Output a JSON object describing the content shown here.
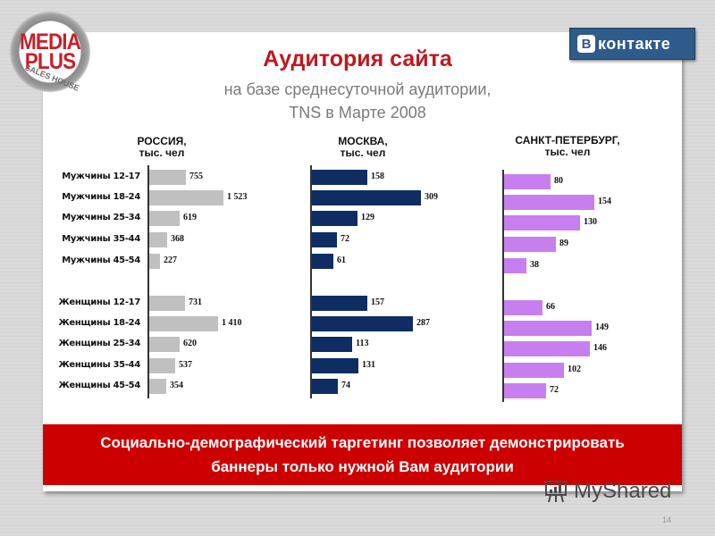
{
  "logo": {
    "line1": "MEDIA",
    "line2": "PLUS",
    "line3": "SALES HOUSE"
  },
  "brand_badge": {
    "letter": "В",
    "text": "контакте"
  },
  "title": "Аудитория сайта",
  "subtitle_line1": "на базе среднесуточной аудитории,",
  "subtitle_line2": "TNS в Марте 2008",
  "banner": {
    "line1": "Социально-демографический таргетинг позволяет демонстрировать",
    "line2": "баннеры только нужной Вам аудитории"
  },
  "watermark": "MyShared",
  "page_number": "14",
  "colors": {
    "russia": "#c0c0c0",
    "moscow": "#0f2d63",
    "spb": "#c77ff0",
    "accent": "#cc0000"
  },
  "chart_data": [
    {
      "type": "bar",
      "orientation": "horizontal",
      "title": "РОССИЯ, тыс. чел",
      "categories": [
        "Мужчины 12-17",
        "Мужчины 18-24",
        "Мужчины 25-34",
        "Мужчины 35-44",
        "Мужчины 45-54",
        "Женщины 12-17",
        "Женщины 18-24",
        "Женщины 25-34",
        "Женщины 35-44",
        "Женщины 45-54"
      ],
      "values": [
        755,
        1523,
        619,
        368,
        227,
        731,
        1410,
        620,
        537,
        354
      ],
      "labels": [
        "755",
        "1 523",
        "619",
        "368",
        "227",
        "731",
        "1 410",
        "620",
        "537",
        "354"
      ],
      "color": "#c0c0c0",
      "grid": false
    },
    {
      "type": "bar",
      "orientation": "horizontal",
      "title": "МОСКВА, тыс. чел",
      "categories": [
        "Мужчины 12-17",
        "Мужчины 18-24",
        "Мужчины 25-34",
        "Мужчины 35-44",
        "Мужчины 45-54",
        "Женщины 12-17",
        "Женщины 18-24",
        "Женщины 25-34",
        "Женщины 35-44",
        "Женщины 45-54"
      ],
      "values": [
        158,
        309,
        129,
        72,
        61,
        157,
        287,
        113,
        131,
        74
      ],
      "labels": [
        "158",
        "309",
        "129",
        "72",
        "61",
        "157",
        "287",
        "113",
        "131",
        "74"
      ],
      "color": "#0f2d63",
      "grid": false
    },
    {
      "type": "bar",
      "orientation": "horizontal",
      "title": "САНКТ-ПЕТЕРБУРГ, тыс. чел",
      "categories": [
        "Мужчины 12-17",
        "Мужчины 18-24",
        "Мужчины 25-34",
        "Мужчины 35-44",
        "Мужчины 45-54",
        "Женщины 12-17",
        "Женщины 18-24",
        "Женщины 25-34",
        "Женщины 35-44",
        "Женщины 45-54"
      ],
      "values": [
        80,
        154,
        130,
        89,
        38,
        66,
        149,
        146,
        102,
        72
      ],
      "labels": [
        "80",
        "154",
        "130",
        "89",
        "38",
        "66",
        "149",
        "146",
        "102",
        "72"
      ],
      "color": "#c77ff0",
      "grid": false
    }
  ],
  "chart_heads": [
    {
      "line1": "РОССИЯ,",
      "line2": "тыс. чел"
    },
    {
      "line1": "МОСКВА,",
      "line2": "тыс. чел"
    },
    {
      "line1": "САНКТ-ПЕТЕРБУРГ,",
      "line2": "тыс. чел"
    }
  ]
}
